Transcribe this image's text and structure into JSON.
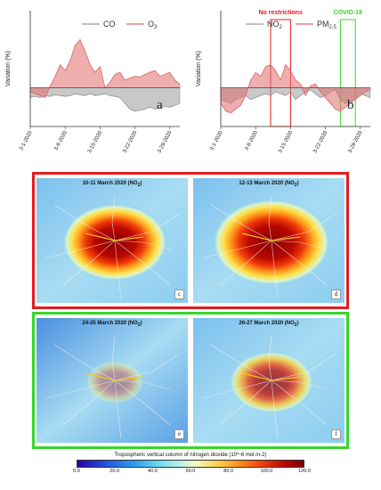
{
  "chart_data": [
    {
      "type": "area",
      "panel_label": "a",
      "ylabel": "Variation (%)",
      "ylim": [
        -100,
        200
      ],
      "yticks": [],
      "x_tick_labels": [
        "3-1-2020",
        "3-8-2020",
        "3-15-2020",
        "3-22-2020",
        "3-29-2020"
      ],
      "series": [
        {
          "name": "CO",
          "color": "#9a9a9a",
          "values": [
            -25,
            -22,
            -25,
            -20,
            -22,
            -18,
            -20,
            -22,
            -20,
            -15,
            -18,
            -20,
            -15,
            -20,
            -18,
            -15,
            -20,
            -22,
            -25,
            -40,
            -55,
            -60,
            -58,
            -55,
            -50,
            -55,
            -52,
            -48,
            -50,
            -45,
            -40
          ]
        },
        {
          "name": "O3",
          "color": "#e06b6b",
          "values": [
            -10,
            -15,
            -20,
            -25,
            5,
            30,
            60,
            45,
            70,
            110,
            125,
            95,
            60,
            40,
            55,
            0,
            15,
            35,
            40,
            20,
            25,
            30,
            28,
            35,
            40,
            45,
            30,
            35,
            40,
            20,
            10
          ]
        }
      ]
    },
    {
      "type": "area",
      "panel_label": "b",
      "ylabel": "Variation (%)",
      "ylim": [
        -100,
        200
      ],
      "yticks": [],
      "x_tick_labels": [
        "3-1-2020",
        "3-8-2020",
        "3-15-2020",
        "3-22-2020",
        "3-29-2020"
      ],
      "annotations": [
        {
          "text": "No restrictions",
          "color": "#e21c22",
          "x_range": [
            10,
            14
          ]
        },
        {
          "text": "COVID-19",
          "color": "#39d62a",
          "x_range": [
            24,
            27
          ]
        }
      ],
      "series": [
        {
          "name": "NO2",
          "color": "#9a9a9a",
          "values": [
            -30,
            -35,
            -40,
            -30,
            -25,
            -20,
            -30,
            -25,
            -20,
            -15,
            -20,
            -10,
            -15,
            -20,
            -10,
            -30,
            -20,
            -10,
            -5,
            -15,
            -25,
            -20,
            -10,
            -5,
            -30,
            -40,
            -35,
            -25,
            -15,
            -20,
            -25
          ]
        },
        {
          "name": "PM2.5",
          "color": "#e06b6b",
          "values": [
            -40,
            -60,
            -65,
            -55,
            -45,
            -20,
            20,
            40,
            30,
            55,
            60,
            45,
            20,
            60,
            45,
            20,
            10,
            -20,
            5,
            10,
            -10,
            -25,
            -40,
            -55,
            -60,
            -50,
            -40,
            -30,
            -20,
            -10,
            -5
          ]
        }
      ]
    }
  ],
  "maps": [
    {
      "title": "10-11 March 2020 (NO",
      "sub": "2",
      "close": ")",
      "letter": "c"
    },
    {
      "title": "12-13 March 2020 (NO",
      "sub": "2",
      "close": ")",
      "letter": "d"
    },
    {
      "title": "24-25 March 2020 (NO",
      "sub": "2",
      "close": ")",
      "letter": "e"
    },
    {
      "title": "26-27 March 2020 (NO",
      "sub": "2",
      "close": ")",
      "letter": "f"
    }
  ],
  "colorbar": {
    "title": "Tropospheric vertical column of nitrogen dioxide (10^-6 mol m-2)",
    "ticks": [
      "0.0",
      "20.0",
      "40.0",
      "60.0",
      "80.0",
      "100.0",
      "120.0"
    ],
    "range": [
      0,
      120
    ]
  }
}
